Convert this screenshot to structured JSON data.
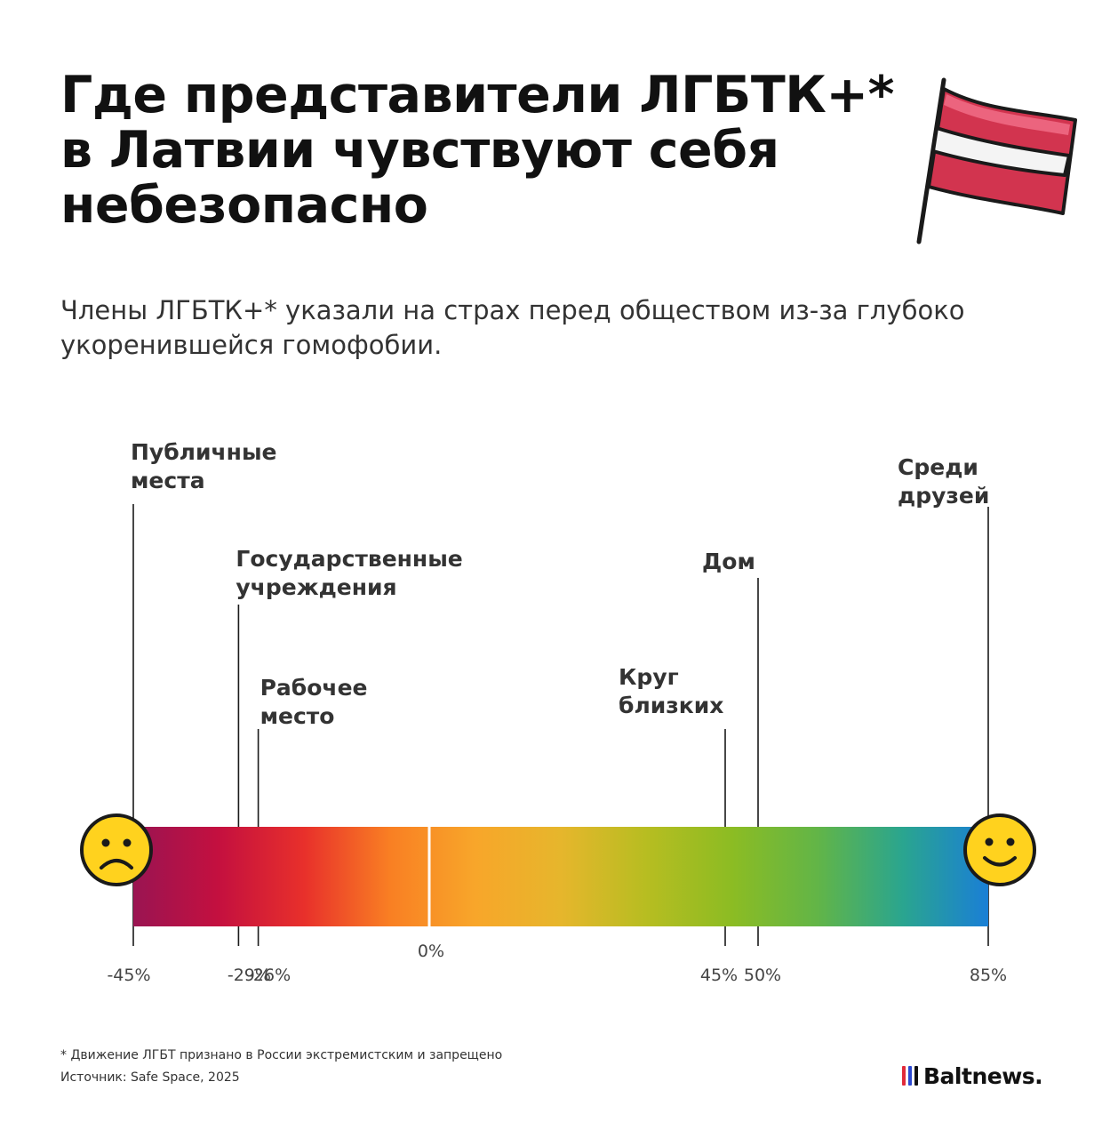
{
  "title": {
    "lines": [
      "Где представители ЛГБТК+*",
      "в Латвии чувствуют себя",
      "небезопасно"
    ]
  },
  "subtitle": {
    "lines": [
      "Члены ЛГБТК+* указали на страх перед обществом из-за глубоко",
      "укоренившейся гомофобии."
    ]
  },
  "chart_data": {
    "type": "scale",
    "xlim": [
      -45,
      85
    ],
    "zero_label": "0%",
    "gradient_colors": [
      "#9a1452",
      "#c4103f",
      "#e8302b",
      "#f97f23",
      "#f8a62a",
      "#e6b62c",
      "#b7bd21",
      "#8cbc23",
      "#62b547",
      "#2aa58f",
      "#1a7fd6"
    ],
    "left_icon": "sad-face-icon",
    "right_icon": "happy-face-icon",
    "points": [
      {
        "label_lines": [
          "Публичные",
          "места"
        ],
        "value": -45,
        "value_label": "-45%"
      },
      {
        "label_lines": [
          "Государственные",
          "учреждения"
        ],
        "value": -29,
        "value_label": "-29%"
      },
      {
        "label_lines": [
          "Рабочее",
          "место"
        ],
        "value": -26,
        "value_label": "-26%"
      },
      {
        "label_lines": [
          "Круг",
          "близких"
        ],
        "value": 45,
        "value_label": "45%"
      },
      {
        "label_lines": [
          "Дом"
        ],
        "value": 50,
        "value_label": "50%"
      },
      {
        "label_lines": [
          "Среди",
          "друзей"
        ],
        "value": 85,
        "value_label": "85%"
      }
    ]
  },
  "flag_icon": "latvia-flag-icon",
  "flag_colors": [
    "#d2344f",
    "#ffffff"
  ],
  "footnote": {
    "lines": [
      "* Движение ЛГБТ признано в России экстремистским и запрещено",
      "Источник: Safe Space, 2025"
    ]
  },
  "brand": {
    "name": "Baltnews.",
    "bar_colors": [
      "#e12b3a",
      "#2c49d1",
      "#111111"
    ]
  }
}
